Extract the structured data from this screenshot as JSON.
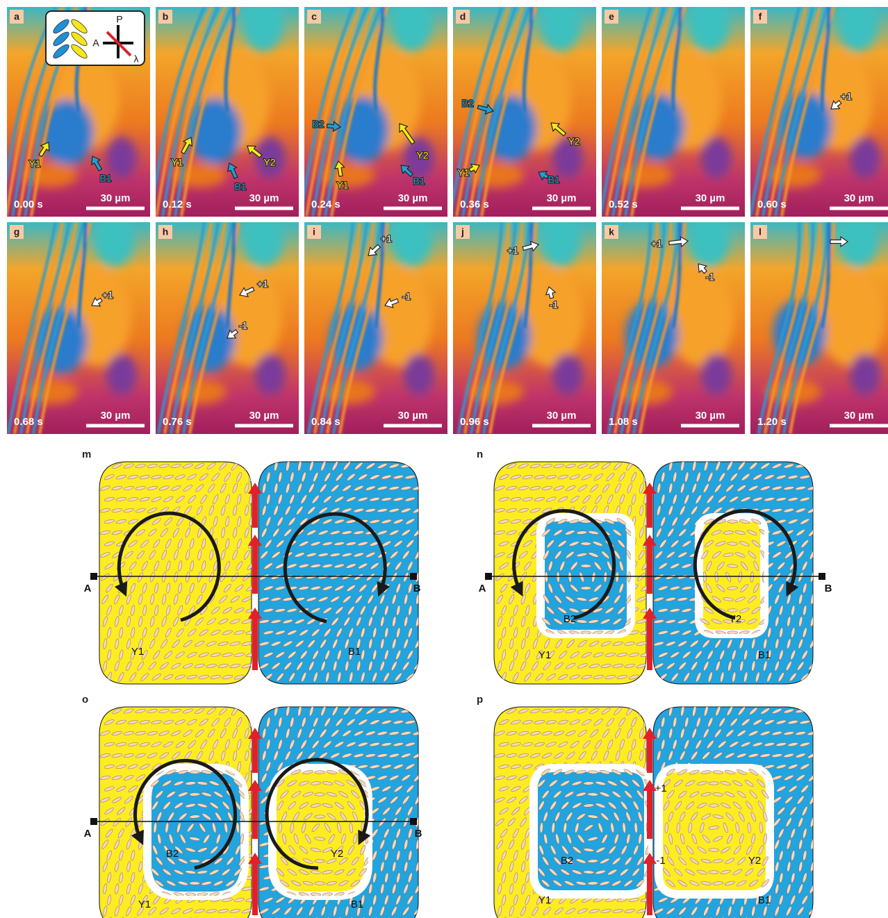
{
  "panels": [
    {
      "letter": "a",
      "time": "0.00 s",
      "scale": "30 µm",
      "labels": [
        "Y1",
        "B1"
      ]
    },
    {
      "letter": "b",
      "time": "0.12 s",
      "scale": "30 µm",
      "labels": [
        "Y1",
        "B1",
        "Y2"
      ]
    },
    {
      "letter": "c",
      "time": "0.24 s",
      "scale": "30 µm",
      "labels": [
        "B2",
        "Y2",
        "Y1",
        "B1"
      ]
    },
    {
      "letter": "d",
      "time": "0.36 s",
      "scale": "30 µm",
      "labels": [
        "B2",
        "Y2",
        "Y1",
        "B1"
      ]
    },
    {
      "letter": "e",
      "time": "0.52 s",
      "scale": "30 µm",
      "labels": []
    },
    {
      "letter": "f",
      "time": "0.60 s",
      "scale": "30 µm",
      "labels": [
        "+1"
      ]
    },
    {
      "letter": "g",
      "time": "0.68 s",
      "scale": "30 µm",
      "labels": [
        "+1"
      ]
    },
    {
      "letter": "h",
      "time": "0.76 s",
      "scale": "30 µm",
      "labels": [
        "+1",
        "-1"
      ]
    },
    {
      "letter": "i",
      "time": "0.84 s",
      "scale": "30 µm",
      "labels": [
        "+1",
        "-1"
      ]
    },
    {
      "letter": "j",
      "time": "0.96 s",
      "scale": "30 µm",
      "labels": [
        "+1",
        "-1"
      ]
    },
    {
      "letter": "k",
      "time": "1.08 s",
      "scale": "30 µm",
      "labels": [
        "+1",
        "-1"
      ]
    },
    {
      "letter": "l",
      "time": "1.20 s",
      "scale": "30 µm",
      "labels": []
    }
  ],
  "inset": {
    "labels": [
      "P",
      "A",
      "λ"
    ]
  },
  "schematics": [
    {
      "letter": "m",
      "labels": [
        "A",
        "B",
        "Y1",
        "B1"
      ]
    },
    {
      "letter": "n",
      "labels": [
        "A",
        "B",
        "B2",
        "Y2",
        "Y1",
        "B1"
      ]
    },
    {
      "letter": "o",
      "labels": [
        "A",
        "B",
        "B2",
        "Y2",
        "Y1",
        "B1"
      ]
    },
    {
      "letter": "p",
      "labels": [
        "B2",
        "Y2",
        "Y1",
        "B1",
        "+1",
        "-1"
      ]
    }
  ]
}
